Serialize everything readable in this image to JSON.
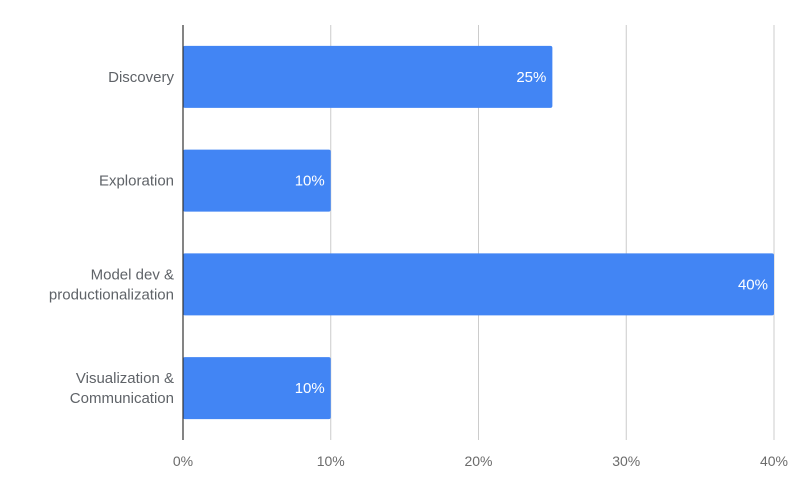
{
  "chart_data": {
    "type": "bar",
    "orientation": "horizontal",
    "categories": [
      [
        "Discovery"
      ],
      [
        "Exploration"
      ],
      [
        "Model dev &",
        "productionalization"
      ],
      [
        "Visualization &",
        "Communication"
      ]
    ],
    "values": [
      25,
      10,
      40,
      10
    ],
    "data_labels": [
      "25%",
      "10%",
      "40%",
      "10%"
    ],
    "xlim": [
      0,
      40
    ],
    "x_ticks": [
      0,
      10,
      20,
      30,
      40
    ],
    "x_tick_labels": [
      "0%",
      "10%",
      "20%",
      "30%",
      "40%"
    ],
    "grid": true,
    "legend": "none",
    "colors": {
      "bar": "#4285f4",
      "grid": "#cccccc",
      "axis": "#333333"
    }
  }
}
